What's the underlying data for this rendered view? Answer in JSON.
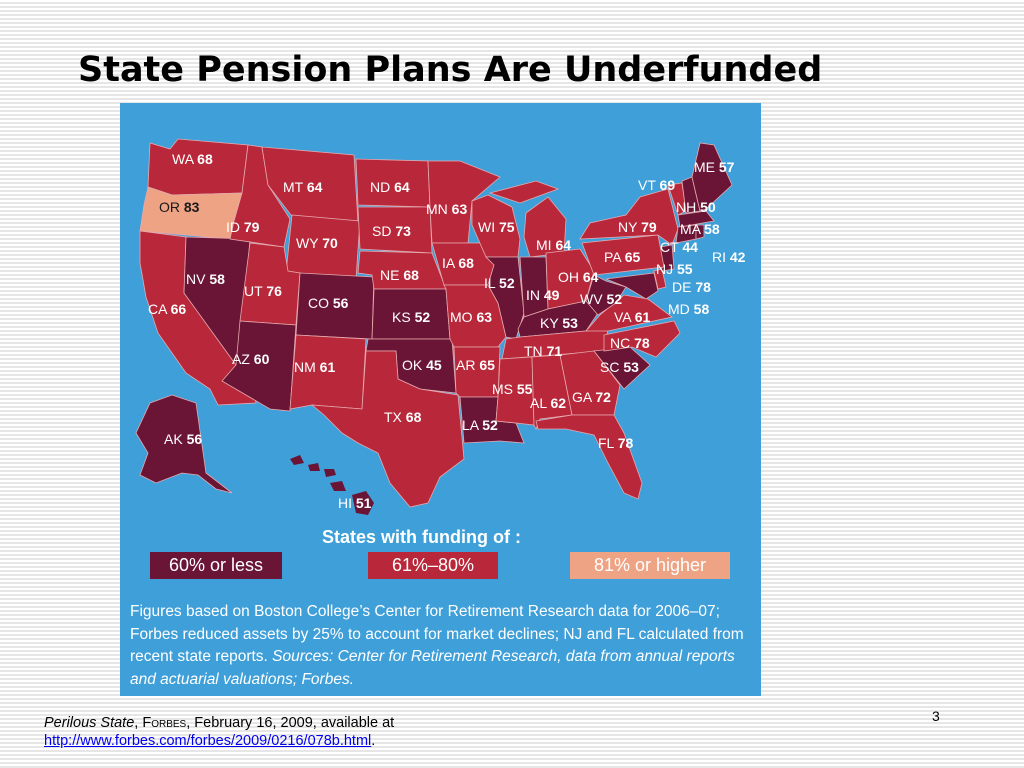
{
  "slide": {
    "title": "State Pension Plans Are Underfunded",
    "page_number": "3"
  },
  "colors": {
    "background": "#f4f4f4",
    "map_background": "#3f9fd8",
    "sixty_or_less": "#6a1535",
    "sixty_one_to_eighty": "#b8283a",
    "eighty_one_or_higher": "#eea384"
  },
  "map": {
    "states": [
      {
        "abbr": "WA",
        "value": "68",
        "tier": "mid"
      },
      {
        "abbr": "OR",
        "value": "83",
        "tier": "high"
      },
      {
        "abbr": "CA",
        "value": "66",
        "tier": "mid"
      },
      {
        "abbr": "NV",
        "value": "58",
        "tier": "low"
      },
      {
        "abbr": "ID",
        "value": "79",
        "tier": "mid"
      },
      {
        "abbr": "MT",
        "value": "64",
        "tier": "mid"
      },
      {
        "abbr": "WY",
        "value": "70",
        "tier": "mid"
      },
      {
        "abbr": "UT",
        "value": "76",
        "tier": "mid"
      },
      {
        "abbr": "AZ",
        "value": "60",
        "tier": "low"
      },
      {
        "abbr": "CO",
        "value": "56",
        "tier": "low"
      },
      {
        "abbr": "NM",
        "value": "61",
        "tier": "mid"
      },
      {
        "abbr": "ND",
        "value": "64",
        "tier": "mid"
      },
      {
        "abbr": "SD",
        "value": "73",
        "tier": "mid"
      },
      {
        "abbr": "NE",
        "value": "68",
        "tier": "mid"
      },
      {
        "abbr": "KS",
        "value": "52",
        "tier": "low"
      },
      {
        "abbr": "OK",
        "value": "45",
        "tier": "low"
      },
      {
        "abbr": "TX",
        "value": "68",
        "tier": "mid"
      },
      {
        "abbr": "MN",
        "value": "63",
        "tier": "mid"
      },
      {
        "abbr": "IA",
        "value": "68",
        "tier": "mid"
      },
      {
        "abbr": "MO",
        "value": "63",
        "tier": "mid"
      },
      {
        "abbr": "AR",
        "value": "65",
        "tier": "mid"
      },
      {
        "abbr": "LA",
        "value": "52",
        "tier": "low"
      },
      {
        "abbr": "WI",
        "value": "75",
        "tier": "mid"
      },
      {
        "abbr": "IL",
        "value": "52",
        "tier": "low"
      },
      {
        "abbr": "MI",
        "value": "64",
        "tier": "mid"
      },
      {
        "abbr": "IN",
        "value": "49",
        "tier": "low"
      },
      {
        "abbr": "OH",
        "value": "64",
        "tier": "mid"
      },
      {
        "abbr": "KY",
        "value": "53",
        "tier": "low"
      },
      {
        "abbr": "TN",
        "value": "71",
        "tier": "mid"
      },
      {
        "abbr": "MS",
        "value": "55",
        "tier": "low"
      },
      {
        "abbr": "AL",
        "value": "62",
        "tier": "mid"
      },
      {
        "abbr": "GA",
        "value": "72",
        "tier": "mid"
      },
      {
        "abbr": "FL",
        "value": "78",
        "tier": "mid"
      },
      {
        "abbr": "SC",
        "value": "53",
        "tier": "low"
      },
      {
        "abbr": "NC",
        "value": "78",
        "tier": "mid"
      },
      {
        "abbr": "VA",
        "value": "61",
        "tier": "mid"
      },
      {
        "abbr": "WV",
        "value": "52",
        "tier": "low"
      },
      {
        "abbr": "PA",
        "value": "65",
        "tier": "mid"
      },
      {
        "abbr": "NY",
        "value": "79",
        "tier": "mid"
      },
      {
        "abbr": "VT",
        "value": "69",
        "tier": "mid"
      },
      {
        "abbr": "NH",
        "value": "50",
        "tier": "low"
      },
      {
        "abbr": "ME",
        "value": "57",
        "tier": "low"
      },
      {
        "abbr": "MA",
        "value": "58",
        "tier": "low"
      },
      {
        "abbr": "CT",
        "value": "44",
        "tier": "low"
      },
      {
        "abbr": "RI",
        "value": "42",
        "tier": "low"
      },
      {
        "abbr": "NJ",
        "value": "55",
        "tier": "low"
      },
      {
        "abbr": "DE",
        "value": "78",
        "tier": "mid"
      },
      {
        "abbr": "MD",
        "value": "58",
        "tier": "low"
      },
      {
        "abbr": "AK",
        "value": "56",
        "tier": "low"
      },
      {
        "abbr": "HI",
        "value": "51",
        "tier": "low"
      }
    ]
  },
  "legend": {
    "heading": "States with funding of :",
    "low_label": "60% or less",
    "mid_label": "61%–80%",
    "high_label": "81% or higher",
    "footnote_main": "Figures based on Boston College’s Center for Retirement Research data for 2006–07; Forbes reduced assets by 25% to account for market declines; NJ and FL calculated from recent state reports.",
    "footnote_sources": "Sources: Center for Retirement Research, data from annual reports and actuarial valuations; Forbes."
  },
  "citation": {
    "title": "Perilous State",
    "sep1": ", ",
    "publication": "Forbes",
    "date_text": ", February 16, 2009,  available at",
    "url": "http://www.forbes.com/forbes/2009/0216/078b.html",
    "end": "."
  }
}
